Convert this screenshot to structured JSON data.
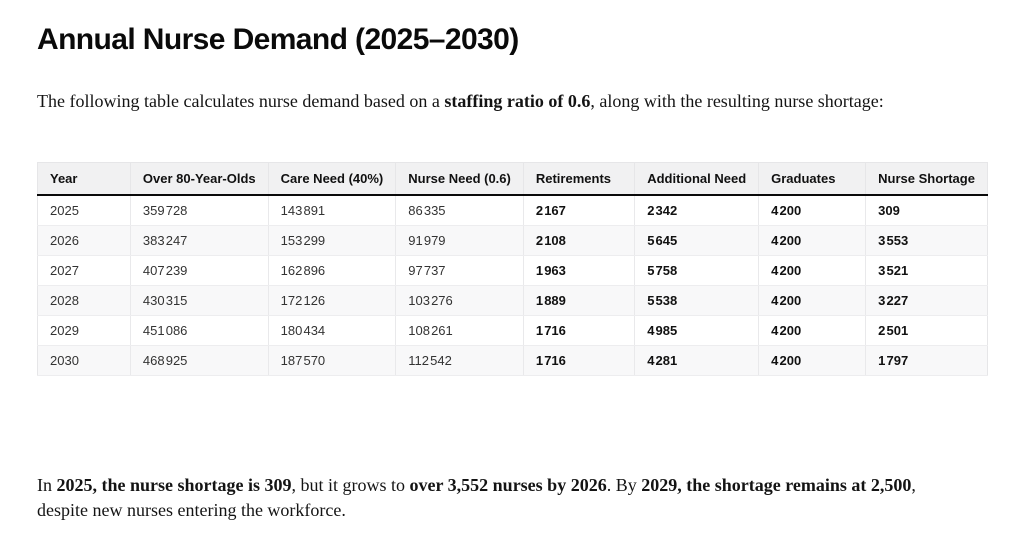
{
  "page": {
    "title": "Annual Nurse Demand (2025–2030)"
  },
  "intro": {
    "pre": "The following table calculates nurse demand based on a ",
    "bold": "staffing ratio of 0.6",
    "post": ", along with the resulting nurse shortage:"
  },
  "table": {
    "columns": [
      "Year",
      "Over 80-Year-Olds",
      "Care Need (40%)",
      "Nurse Need (0.6)",
      "Retirements",
      "Additional Need",
      "Graduates",
      "Nurse Shortage"
    ],
    "bold_columns": [
      4,
      5,
      6,
      7
    ],
    "rows": [
      [
        "2025",
        "359 728",
        "143 891",
        "86 335",
        "2 167",
        "2 342",
        "4 200",
        "309"
      ],
      [
        "2026",
        "383 247",
        "153 299",
        "91 979",
        "2 108",
        "5 645",
        "4 200",
        "3 553"
      ],
      [
        "2027",
        "407 239",
        "162 896",
        "97 737",
        "1 963",
        "5 758",
        "4 200",
        "3 521"
      ],
      [
        "2028",
        "430 315",
        "172 126",
        "103 276",
        "1 889",
        "5 538",
        "4 200",
        "3 227"
      ],
      [
        "2029",
        "451 086",
        "180 434",
        "108 261",
        "1 716",
        "4 985",
        "4 200",
        "2 501"
      ],
      [
        "2030",
        "468 925",
        "187 570",
        "112 542",
        "1 716",
        "4 281",
        "4 200",
        "1 797"
      ]
    ]
  },
  "summary": {
    "segments": [
      {
        "text": "In ",
        "bold": false
      },
      {
        "text": "2025, the nurse shortage is 309",
        "bold": true
      },
      {
        "text": ", but it grows to ",
        "bold": false
      },
      {
        "text": "over 3,552 nurses by 2026",
        "bold": true
      },
      {
        "text": ". By ",
        "bold": false
      },
      {
        "text": "2029, the shortage remains at 2,500",
        "bold": true
      },
      {
        "text": ", despite new nurses entering the workforce.",
        "bold": false
      }
    ]
  },
  "colors": {
    "page_background": "#ffffff",
    "text": "#141414",
    "table_header_background": "#f1f1f2",
    "table_header_rule": "#0a0a0a",
    "table_border": "#e6e6e8",
    "table_stripe": "#f8f8f9"
  }
}
